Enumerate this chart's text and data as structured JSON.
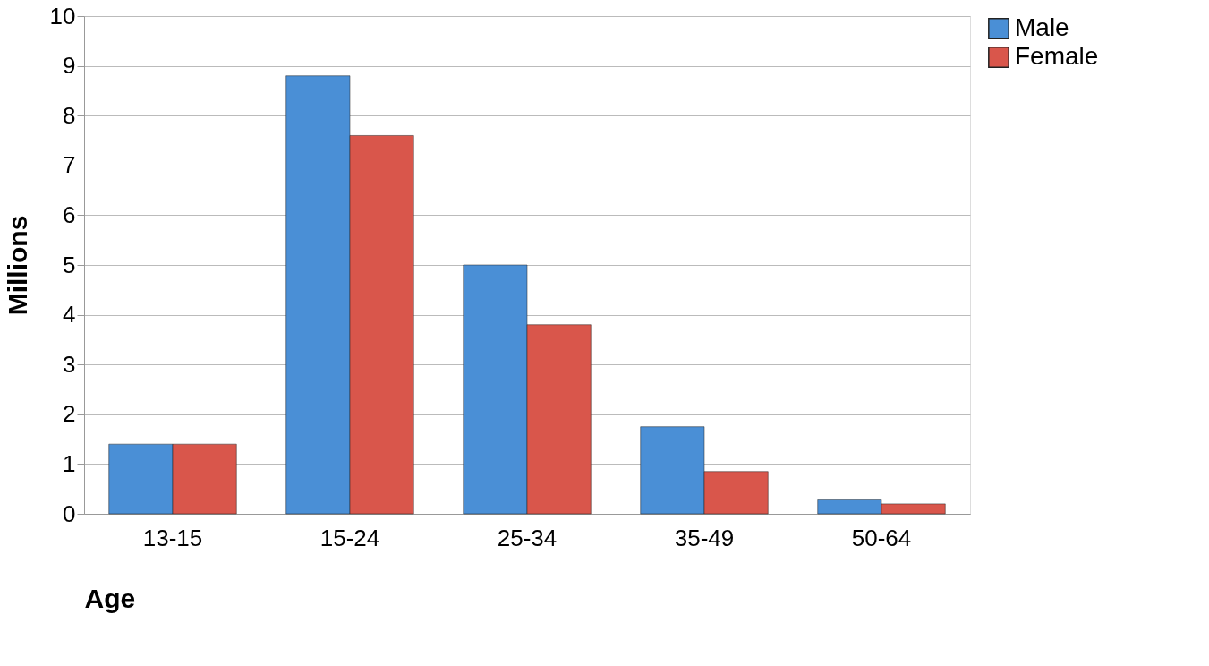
{
  "chart_data": {
    "type": "bar",
    "xlabel": "Age",
    "ylabel": "Millions",
    "categories": [
      "13-15",
      "15-24",
      "25-34",
      "35-49",
      "50-64"
    ],
    "series": [
      {
        "name": "Male",
        "color": "#4a8fd6",
        "values": [
          1.4,
          8.8,
          5.0,
          1.75,
          0.28
        ]
      },
      {
        "name": "Female",
        "color": "#d9564b",
        "values": [
          1.4,
          7.6,
          3.8,
          0.85,
          0.2
        ]
      }
    ],
    "ylim": [
      0,
      10
    ],
    "yticks": [
      0,
      1,
      2,
      3,
      4,
      5,
      6,
      7,
      8,
      9,
      10
    ],
    "grid": "y",
    "legend": "right"
  }
}
